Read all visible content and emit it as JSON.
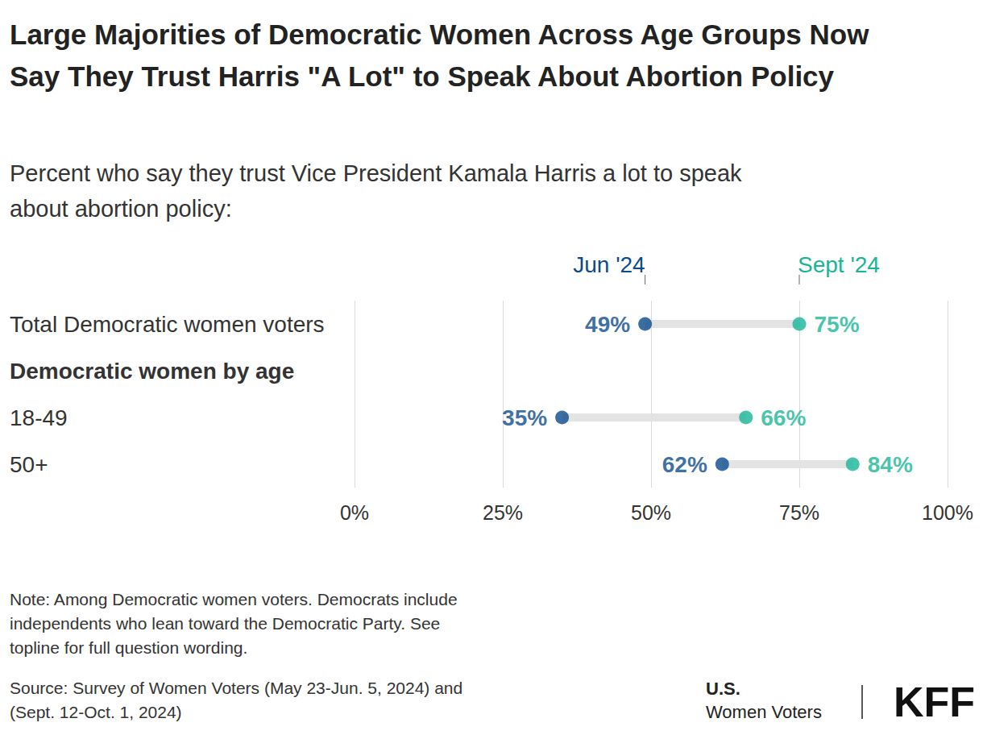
{
  "chart_data": {
    "type": "dumbbell",
    "orientation": "horizontal",
    "title": "Large Majorities of Democratic Women Across Age Groups Now Say They Trust Harris \"A Lot\" to Speak About Abortion Policy",
    "subtitle": "Percent who say they trust Vice President Kamala Harris a lot to speak about abortion policy:",
    "categories": [
      "Total Democratic women voters",
      "Democratic women by age",
      "18-49",
      "50+"
    ],
    "series": [
      {
        "name": "Jun '24",
        "color": "#0b4a8b",
        "values": [
          49,
          null,
          35,
          62
        ],
        "value_labels": [
          "49%",
          null,
          "35%",
          "62%"
        ]
      },
      {
        "name": "Sept '24",
        "color": "#17b596",
        "values": [
          75,
          null,
          66,
          84
        ],
        "value_labels": [
          "75%",
          null,
          "66%",
          "84%"
        ]
      }
    ],
    "xlim": [
      0,
      100
    ],
    "xticks": [
      {
        "value": 0,
        "label": "0%"
      },
      {
        "value": 25,
        "label": "25%"
      },
      {
        "value": 50,
        "label": "50%"
      },
      {
        "value": 75,
        "label": "75%"
      },
      {
        "value": 100,
        "label": "100%"
      }
    ],
    "grid": true,
    "data_labels": true,
    "note": "Note: Among Democratic women voters. Democrats include independents who lean toward the Democratic Party. See topline for full question wording.",
    "source": "Source: Survey of Women Voters (May 23-Jun. 5, 2024) and (Sept. 12-Oct. 1, 2024)",
    "branding": [
      "U.S.",
      "Women Voters",
      "KFF"
    ]
  }
}
